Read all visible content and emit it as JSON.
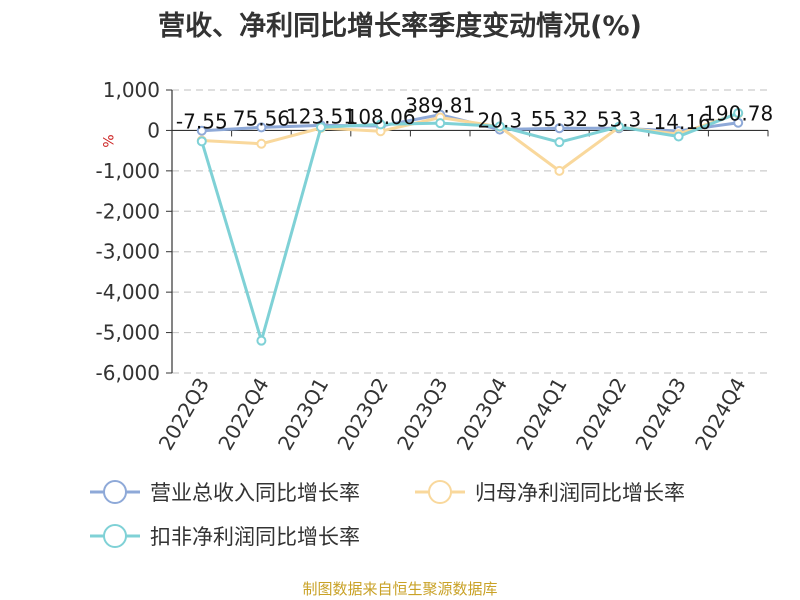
{
  "title": "营收、净利同比增长率季度变动情况(%)",
  "footer": "制图数据来自恒生聚源数据库",
  "chart_data": {
    "type": "line",
    "title": "营收、净利同比增长率季度变动情况(%)",
    "ylabel": "%",
    "categories": [
      "2022Q3",
      "2022Q4",
      "2023Q1",
      "2023Q2",
      "2023Q3",
      "2023Q4",
      "2024Q1",
      "2024Q2",
      "2024Q3",
      "2024Q4"
    ],
    "ylim": [
      -6000,
      1000
    ],
    "yticks": [
      1000,
      0,
      -1000,
      -2000,
      -3000,
      -4000,
      -5000,
      -6000
    ],
    "ytick_labels": [
      "1,000",
      "0",
      "-1,000",
      "-2,000",
      "-3,000",
      "-4,000",
      "-5,000",
      "-6,000"
    ],
    "grid": true,
    "legend_position": "bottom",
    "series": [
      {
        "name": "营业总收入同比增长率",
        "color": "#8ea9d8",
        "values": [
          -7.55,
          75.56,
          123.51,
          108.06,
          389.81,
          20.3,
          55.32,
          53.3,
          -14.16,
          190.78
        ]
      },
      {
        "name": "归母净利润同比增长率",
        "color": "#f9d89c",
        "values": [
          -250,
          -330,
          60,
          -20,
          320,
          90,
          -1000,
          80,
          -90,
          420
        ]
      },
      {
        "name": "扣非净利润同比增长率",
        "color": "#7fd1d6",
        "values": [
          -270,
          -5200,
          80,
          150,
          180,
          100,
          -290,
          90,
          -150,
          430
        ]
      }
    ],
    "data_labels": [
      {
        "category": "2022Q3",
        "text": "-7.55"
      },
      {
        "category": "2022Q4",
        "text": "75.56"
      },
      {
        "category": "2023Q1",
        "text": "123.51"
      },
      {
        "category": "2023Q2",
        "text": "108.06"
      },
      {
        "category": "2023Q3",
        "text": "389.81"
      },
      {
        "category": "2023Q4",
        "text": "20.3"
      },
      {
        "category": "2024Q1",
        "text": "55.32"
      },
      {
        "category": "2024Q2",
        "text": "53.3"
      },
      {
        "category": "2024Q3",
        "text": "-14.16"
      },
      {
        "category": "2024Q4",
        "text": "190.78"
      }
    ]
  }
}
